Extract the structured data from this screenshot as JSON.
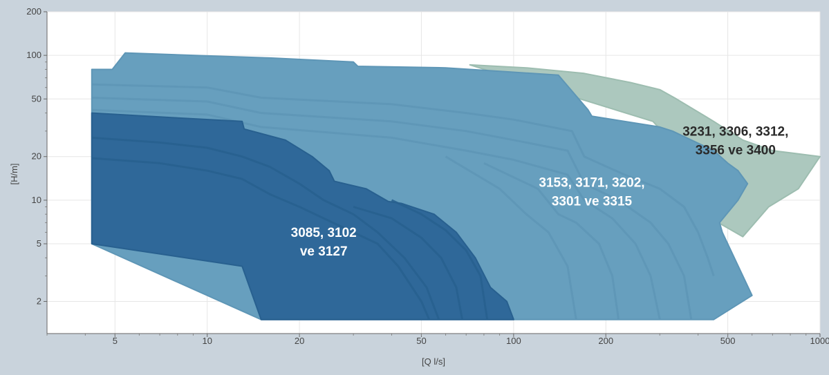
{
  "chart_data": {
    "type": "area",
    "xlabel": "[Q l/s]",
    "ylabel": "[H/m]",
    "xscale": "log",
    "yscale": "log",
    "xlim": [
      3,
      1000
    ],
    "ylim": [
      1.2,
      200
    ],
    "xticks": [
      5,
      10,
      20,
      50,
      100,
      200,
      500,
      1000
    ],
    "yticks": [
      2,
      5,
      10,
      20,
      50,
      100,
      200
    ],
    "grid": true,
    "regions": [
      {
        "label_lines": [
          "3231, 3306, 3312,",
          "3356 ve 3400"
        ],
        "label_pos": [
          530,
          26
        ],
        "label_color": "#2a2a2a",
        "fill": "#acc8be",
        "edge": "#9dbdb0",
        "boundary": [
          [
            72,
            86
          ],
          [
            110,
            82
          ],
          [
            170,
            75
          ],
          [
            240,
            65
          ],
          [
            300,
            58
          ],
          [
            340,
            50
          ],
          [
            450,
            35
          ],
          [
            560,
            26
          ],
          [
            700,
            22
          ],
          [
            1000,
            20
          ],
          [
            850,
            12
          ],
          [
            680,
            9
          ],
          [
            560,
            5.6
          ],
          [
            495,
            6.5
          ],
          [
            440,
            7.5
          ],
          [
            440,
            13
          ],
          [
            285,
            35
          ],
          [
            72,
            86
          ]
        ],
        "curves": []
      },
      {
        "label_lines": [
          "3153, 3171, 3202,",
          "3301 ve 3315"
        ],
        "label_pos": [
          180,
          11.5
        ],
        "label_color": "#ffffff",
        "fill": "#679fbe",
        "edge": "#5e96b6",
        "boundary": [
          [
            4.2,
            80
          ],
          [
            4.9,
            80
          ],
          [
            5.4,
            104
          ],
          [
            9,
            100
          ],
          [
            16,
            96
          ],
          [
            30,
            90
          ],
          [
            31,
            84
          ],
          [
            60,
            82
          ],
          [
            95,
            77
          ],
          [
            140,
            73
          ],
          [
            175,
            42
          ],
          [
            180,
            38
          ],
          [
            300,
            32
          ],
          [
            330,
            30
          ],
          [
            450,
            22
          ],
          [
            500,
            18
          ],
          [
            540,
            16
          ],
          [
            580,
            13
          ],
          [
            540,
            10
          ],
          [
            470,
            7
          ],
          [
            480,
            6
          ],
          [
            600,
            2.2
          ],
          [
            450,
            1.5
          ],
          [
            220,
            1.5
          ],
          [
            100,
            1.5
          ],
          [
            71,
            1.5
          ],
          [
            42,
            1.5
          ],
          [
            15,
            1.5
          ],
          [
            4.2,
            5
          ],
          [
            4.2,
            80
          ]
        ],
        "curves": [
          [
            [
              4.2,
              63
            ],
            [
              10,
              60
            ],
            [
              15,
              51
            ],
            [
              40,
              46
            ],
            [
              70,
              40
            ],
            [
              100,
              36
            ],
            [
              155,
              30
            ],
            [
              170,
              20
            ],
            [
              230,
              15
            ],
            [
              300,
              12
            ],
            [
              360,
              9
            ],
            [
              400,
              6
            ],
            [
              430,
              4
            ],
            [
              450,
              3
            ]
          ],
          [
            [
              4.2,
              51
            ],
            [
              10,
              48
            ],
            [
              15,
              40
            ],
            [
              40,
              35
            ],
            [
              70,
              30
            ],
            [
              100,
              26
            ],
            [
              150,
              22
            ],
            [
              170,
              13
            ],
            [
              220,
              10
            ],
            [
              280,
              7
            ],
            [
              320,
              5
            ],
            [
              360,
              3
            ],
            [
              380,
              1.5
            ]
          ],
          [
            [
              4.2,
              42
            ],
            [
              10,
              39
            ],
            [
              15,
              32
            ],
            [
              40,
              27
            ],
            [
              70,
              22
            ],
            [
              100,
              19
            ],
            [
              150,
              15
            ],
            [
              170,
              10
            ],
            [
              210,
              7.5
            ],
            [
              250,
              5
            ],
            [
              280,
              3
            ],
            [
              300,
              1.5
            ]
          ],
          [
            [
              80,
              18
            ],
            [
              120,
              12
            ],
            [
              140,
              8
            ],
            [
              160,
              7
            ],
            [
              190,
              5
            ],
            [
              210,
              3
            ],
            [
              220,
              1.5
            ]
          ],
          [
            [
              60,
              20
            ],
            [
              90,
              12
            ],
            [
              110,
              8
            ],
            [
              130,
              6
            ],
            [
              150,
              3.5
            ],
            [
              160,
              1.5
            ]
          ]
        ]
      },
      {
        "label_lines": [
          "3085, 3102",
          "ve 3127"
        ],
        "label_pos": [
          24,
          5.2
        ],
        "label_color": "#ffffff",
        "fill": "#2f6899",
        "edge": "#28608f",
        "boundary": [
          [
            4.2,
            40
          ],
          [
            8,
            37
          ],
          [
            13,
            35
          ],
          [
            13.2,
            31
          ],
          [
            18,
            26
          ],
          [
            22,
            20
          ],
          [
            25,
            16
          ],
          [
            26,
            13.5
          ],
          [
            33,
            12
          ],
          [
            39,
            9.8
          ],
          [
            43,
            9.5
          ],
          [
            55,
            8
          ],
          [
            65,
            6
          ],
          [
            75,
            4
          ],
          [
            84,
            2.5
          ],
          [
            95,
            2
          ],
          [
            100,
            1.5
          ],
          [
            15,
            1.5
          ],
          [
            13,
            3.5
          ],
          [
            4.2,
            5
          ],
          [
            4.2,
            40
          ]
        ],
        "curves": [
          [
            [
              4.2,
              27
            ],
            [
              7,
              25
            ],
            [
              10,
              23
            ],
            [
              13,
              20
            ],
            [
              16,
              17
            ],
            [
              20,
              13
            ],
            [
              24,
              10
            ],
            [
              30,
              8
            ],
            [
              36,
              6
            ],
            [
              44,
              4
            ],
            [
              52,
              2.5
            ],
            [
              57,
              1.5
            ]
          ],
          [
            [
              4.2,
              19.5
            ],
            [
              7,
              18
            ],
            [
              10,
              16
            ],
            [
              13,
              14
            ],
            [
              16,
              11
            ],
            [
              20,
              9
            ],
            [
              24,
              7.5
            ],
            [
              30,
              6
            ],
            [
              36,
              5
            ],
            [
              42,
              3.5
            ],
            [
              50,
              2
            ],
            [
              53,
              1.5
            ]
          ],
          [
            [
              40,
              10
            ],
            [
              50,
              8
            ],
            [
              60,
              6.2
            ],
            [
              70,
              4.5
            ],
            [
              78,
              3
            ],
            [
              82,
              1.5
            ]
          ],
          [
            [
              30,
              9
            ],
            [
              40,
              7.5
            ],
            [
              50,
              5.5
            ],
            [
              58,
              4
            ],
            [
              65,
              2.5
            ],
            [
              68,
              1.5
            ]
          ]
        ]
      }
    ]
  }
}
